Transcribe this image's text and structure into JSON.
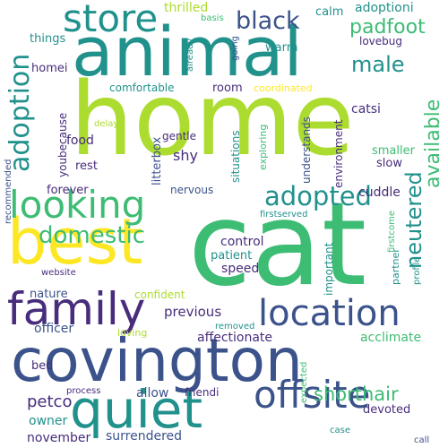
{
  "palette": {
    "lime": "#addc30",
    "yellow": "#fde725",
    "green": "#3dbc74",
    "teal": "#21918c",
    "blue": "#3b528b",
    "indigo": "#472d7b",
    "navy": "#440154"
  },
  "words": {
    "home": "home",
    "cat": "cat",
    "animal": "animal",
    "covington": "covington",
    "best": "best",
    "quiet": "quiet",
    "family": "family",
    "location": "location",
    "offsite": "offsite",
    "looking": "looking",
    "store": "store",
    "adoption": "adoption",
    "adopted": "adopted",
    "domestic": "domestic",
    "neutered": "neutered",
    "available": "available",
    "black": "black",
    "padfoot": "padfoot",
    "male": "male",
    "shorthair": "shorthair",
    "adoptioni": "adoptioni",
    "thrilled": "thrilled",
    "calm": "calm",
    "basis": "basis",
    "things": "things",
    "homei": "homei",
    "lovebug": "lovebug",
    "already": "already",
    "going": "going",
    "warm": "warm",
    "comfortable": "comfortable",
    "coordinated": "coordinated",
    "room": "room",
    "catsi": "catsi",
    "youbecause": "youbecause",
    "litterbox": "litterbox",
    "situations": "situations",
    "understands": "understands",
    "environment": "environment",
    "delays": "delays",
    "food": "food",
    "gentle": "gentle",
    "exploring": "exploring",
    "smaller": "smaller",
    "rest": "rest",
    "shy": "shy",
    "slow": "slow",
    "recommended": "recommended",
    "forever": "forever",
    "nervous": "nervous",
    "cuddle": "cuddle",
    "firstserved": "firstserved",
    "firstcome": "firstcome",
    "control": "control",
    "patient": "patient",
    "speed": "speed",
    "important": "important",
    "profile": "profile",
    "partner": "partner",
    "website": "website",
    "nature": "nature",
    "confident": "confident",
    "previous": "previous",
    "officer": "officer",
    "loving": "loving",
    "removed": "removed",
    "affectionate": "affectionate",
    "acclimate": "acclimate",
    "bed": "bed",
    "petco": "petco",
    "allow": "allow",
    "process": "process",
    "friendi": "friendi",
    "expected": "expected",
    "devoted": "devoted",
    "owner": "owner",
    "case": "case",
    "november": "november",
    "surrendered": "surrendered",
    "call": "call"
  }
}
